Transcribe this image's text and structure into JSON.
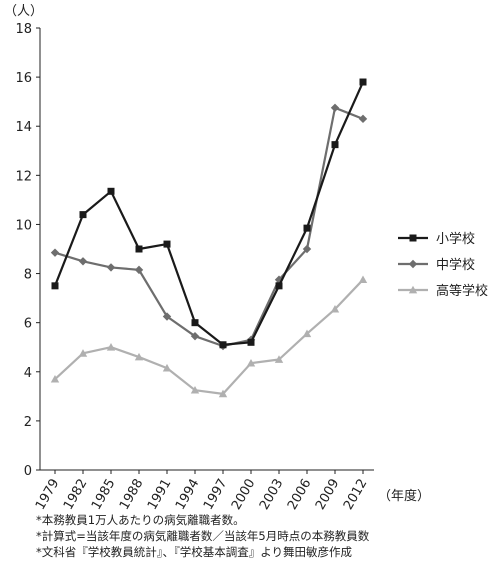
{
  "chart_data": {
    "type": "line",
    "yunit": "（人）",
    "xunit": "（年度）",
    "ylim": [
      0,
      18
    ],
    "y_ticks": [
      "0",
      "2",
      "4",
      "6",
      "8",
      "10",
      "12",
      "14",
      "16",
      "18"
    ],
    "categories": [
      "1979",
      "1982",
      "1985",
      "1988",
      "1991",
      "1994",
      "1997",
      "2000",
      "2003",
      "2006",
      "2009",
      "2012"
    ],
    "series": [
      {
        "name": "小学校",
        "color": "#1a1a1a",
        "marker": "square",
        "values": [
          7.5,
          10.4,
          11.35,
          9.0,
          9.2,
          6.0,
          5.1,
          5.2,
          7.5,
          9.85,
          13.25,
          15.8
        ]
      },
      {
        "name": "中学校",
        "color": "#6e6e6e",
        "marker": "diamond",
        "values": [
          8.85,
          8.5,
          8.25,
          8.15,
          6.25,
          5.45,
          5.05,
          5.3,
          7.75,
          9.0,
          14.75,
          14.3
        ]
      },
      {
        "name": "高等学校",
        "color": "#b0b0b0",
        "marker": "triangle",
        "values": [
          3.7,
          4.75,
          5.0,
          4.6,
          4.15,
          3.25,
          3.1,
          4.35,
          4.5,
          5.55,
          6.55,
          7.75
        ]
      }
    ],
    "legend_position": "right"
  },
  "notes": [
    "*本務教員1万人あたりの病気離職者数。",
    "*計算式=当該年度の病気離職者数／当該年5月時点の本務教員数",
    "*文科省『学校教員統計』、『学校基本調査』より舞田敏彦作成"
  ]
}
